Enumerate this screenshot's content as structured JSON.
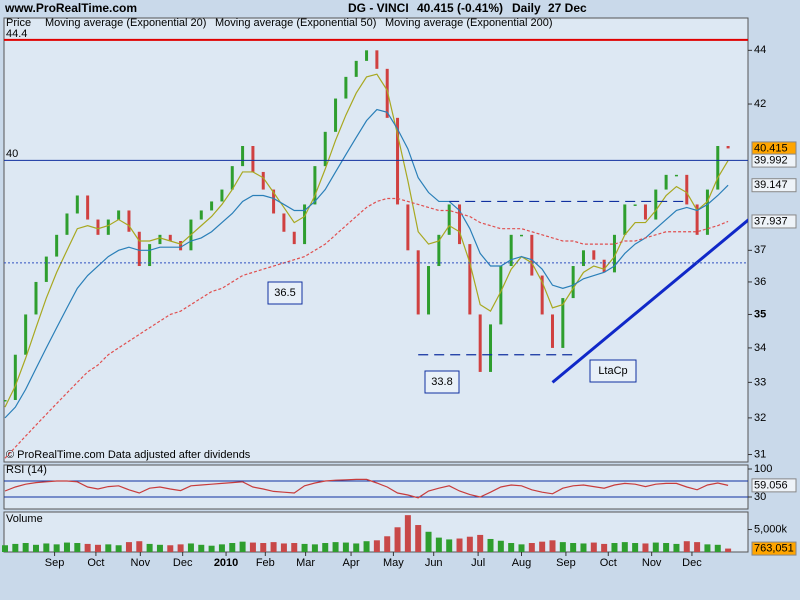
{
  "chart_data": [
    {
      "type": "line",
      "site": "www.ProRealTime.com",
      "title": "DG - VINCI",
      "quote": "40.415 (-0.41%)",
      "period": "Daily",
      "date": "27 Dec",
      "footer": "© ProRealTime.com  Data adjusted after dividends",
      "log_scale": true,
      "ylim": [
        30.8,
        45.25
      ],
      "yticks": [
        31,
        32,
        33,
        34,
        35,
        36,
        37,
        42,
        44
      ],
      "xticks": [
        {
          "value": 4.8,
          "label": "Sep"
        },
        {
          "value": 8.8,
          "label": "Oct"
        },
        {
          "value": 13.1,
          "label": "Nov"
        },
        {
          "value": 17.2,
          "label": "Dec"
        },
        {
          "value": 21.4,
          "label": "2010"
        },
        {
          "value": 25.2,
          "label": "Feb"
        },
        {
          "value": 29.1,
          "label": "Mar"
        },
        {
          "value": 33.5,
          "label": "Apr"
        },
        {
          "value": 37.6,
          "label": "May"
        },
        {
          "value": 41.5,
          "label": "Jun"
        },
        {
          "value": 45.8,
          "label": "Jul"
        },
        {
          "value": 50,
          "label": "Aug"
        },
        {
          "value": 54.3,
          "label": "Sep"
        },
        {
          "value": 58.4,
          "label": "Oct"
        },
        {
          "value": 62.6,
          "label": "Nov"
        },
        {
          "value": 66.5,
          "label": "Dec"
        }
      ],
      "series": [
        {
          "name": "Price",
          "color": "#2e9e2e",
          "down_color": "#d04040",
          "style": "bars",
          "values": [
            32.5,
            33.8,
            35,
            36,
            36.8,
            37.5,
            38.2,
            38.8,
            38,
            37.5,
            38,
            38.3,
            37.6,
            36.5,
            37.2,
            37.5,
            37.3,
            37,
            38,
            38.3,
            38.6,
            39,
            39.8,
            40.5,
            39.6,
            39,
            38.2,
            37.6,
            37.2,
            38.5,
            39.8,
            41,
            42.2,
            43,
            43.6,
            44,
            43.3,
            41.5,
            38.5,
            37,
            35,
            36.5,
            37.5,
            38.5,
            37.2,
            35,
            33.3,
            34.7,
            36.5,
            37.5,
            37.5,
            36.2,
            35,
            34,
            35.5,
            36.5,
            37,
            36.7,
            36.3,
            37.5,
            38.5,
            38.5,
            38,
            39,
            39.5,
            39.5,
            38.5,
            37.5,
            39,
            40.5,
            40.415
          ]
        },
        {
          "name": "Moving average (Exponential 20)",
          "color": "#a8a820",
          "values": [
            32.3,
            32.9,
            33.7,
            34.6,
            35.5,
            36.3,
            37,
            37.7,
            37.8,
            37.7,
            37.8,
            38,
            37.8,
            37.3,
            37.3,
            37.4,
            37.3,
            37.2,
            37.5,
            37.8,
            38.1,
            38.5,
            39,
            39.6,
            39.6,
            39.4,
            38.9,
            38.4,
            37.9,
            38.1,
            38.8,
            39.7,
            40.7,
            41.6,
            42.4,
            43,
            43.1,
            42.5,
            40.9,
            39.3,
            37.6,
            37.2,
            37.3,
            37.8,
            37.6,
            36.6,
            35.3,
            35.1,
            35.7,
            36.4,
            36.8,
            36.6,
            36,
            35.2,
            35.3,
            35.8,
            36.3,
            36.5,
            36.4,
            36.8,
            37.5,
            37.9,
            37.9,
            38.3,
            38.8,
            39.1,
            38.9,
            38.3,
            38.6,
            39.4,
            39.992
          ]
        },
        {
          "name": "Moving average (Exponential 50)",
          "color": "#2a7fb8",
          "values": [
            32,
            32.3,
            32.8,
            33.4,
            34,
            34.6,
            35.2,
            35.8,
            36.2,
            36.5,
            36.8,
            37,
            37.1,
            37,
            37,
            37.1,
            37.1,
            37.1,
            37.3,
            37.4,
            37.6,
            37.9,
            38.2,
            38.6,
            38.8,
            38.8,
            38.7,
            38.5,
            38.3,
            38.3,
            38.6,
            39,
            39.6,
            40.2,
            40.8,
            41.4,
            41.8,
            41.7,
            41.1,
            40.4,
            39.4,
            38.9,
            38.6,
            38.6,
            38.3,
            37.7,
            36.9,
            36.5,
            36.5,
            36.7,
            36.8,
            36.7,
            36.4,
            35.9,
            35.8,
            35.9,
            36.1,
            36.2,
            36.3,
            36.5,
            36.9,
            37.2,
            37.4,
            37.7,
            38,
            38.3,
            38.4,
            38.3,
            38.5,
            38.8,
            39.147
          ]
        },
        {
          "name": "Moving average (Exponential 200)",
          "color": "#e05050",
          "dashed": true,
          "values": [
            30.9,
            31.2,
            31.5,
            31.8,
            32.1,
            32.4,
            32.7,
            33,
            33.3,
            33.5,
            33.8,
            34,
            34.2,
            34.4,
            34.6,
            34.8,
            35,
            35.1,
            35.3,
            35.5,
            35.7,
            35.8,
            36,
            36.2,
            36.3,
            36.4,
            36.5,
            36.6,
            36.7,
            36.8,
            37,
            37.2,
            37.5,
            37.8,
            38.1,
            38.4,
            38.6,
            38.7,
            38.7,
            38.6,
            38.5,
            38.4,
            38.3,
            38.3,
            38.2,
            38.1,
            37.9,
            37.8,
            37.7,
            37.7,
            37.7,
            37.6,
            37.5,
            37.4,
            37.3,
            37.3,
            37.2,
            37.2,
            37.2,
            37.2,
            37.3,
            37.3,
            37.4,
            37.5,
            37.6,
            37.6,
            37.6,
            37.6,
            37.7,
            37.8,
            37.937
          ]
        }
      ],
      "levels": [
        {
          "value": 44.4,
          "label": "44.4",
          "color": "#e00000"
        },
        {
          "value": 40,
          "label": "40",
          "color": "#1030a0"
        },
        {
          "value": 36.6,
          "color": "#3050c0",
          "dashed": true
        }
      ],
      "segments": [
        {
          "x": [
            43,
            66
          ],
          "values": [
            38.6,
            38.6
          ],
          "color": "#1030a0",
          "dashed": true
        },
        {
          "x": [
            40,
            55
          ],
          "values": [
            33.8,
            33.8
          ],
          "color": "#1030a0",
          "dashed": true
        },
        {
          "x": [
            53,
            72
          ],
          "values": [
            33,
            38
          ],
          "color": "#1028c8"
        }
      ],
      "annotations": [
        {
          "label": "36.5"
        },
        {
          "label": "33.8"
        },
        {
          "label": "LtaCp"
        }
      ]
    },
    {
      "type": "line",
      "title": "RSI (14)",
      "ylim": [
        0,
        110
      ],
      "yticks": [
        30,
        100
      ],
      "levels": [
        30,
        70
      ],
      "series": [
        {
          "color": "#c83c3c",
          "values": [
            45,
            55,
            62,
            66,
            68,
            70,
            70,
            68,
            55,
            50,
            56,
            58,
            48,
            40,
            52,
            55,
            50,
            46,
            58,
            60,
            62,
            64,
            66,
            68,
            55,
            50,
            44,
            42,
            40,
            58,
            65,
            70,
            72,
            73,
            74,
            74,
            65,
            55,
            40,
            35,
            28,
            45,
            52,
            58,
            45,
            36,
            30,
            42,
            55,
            60,
            58,
            48,
            42,
            38,
            52,
            58,
            60,
            56,
            52,
            60,
            64,
            62,
            56,
            62,
            64,
            64,
            55,
            48,
            60,
            65,
            59.056
          ]
        }
      ]
    },
    {
      "type": "bar",
      "title": "Volume",
      "ylim": [
        0,
        8900000
      ],
      "yticks": [
        {
          "value": 5000000,
          "label": "5,000k"
        }
      ],
      "color": "#c84848",
      "current_label": "763,051",
      "values": [
        1500000,
        1800000,
        2000000,
        1600000,
        1900000,
        1700000,
        2100000,
        2000000,
        1800000,
        1600000,
        1700000,
        1500000,
        2200000,
        2400000,
        1800000,
        1600000,
        1500000,
        1700000,
        1900000,
        1600000,
        1400000,
        1700000,
        2000000,
        2300000,
        2100000,
        2000000,
        2200000,
        1900000,
        2000000,
        1800000,
        1700000,
        2000000,
        2200000,
        2100000,
        1900000,
        2400000,
        2600000,
        3500000,
        5500000,
        8200000,
        6000000,
        4500000,
        3200000,
        2800000,
        3000000,
        3400000,
        3800000,
        2900000,
        2500000,
        2000000,
        1700000,
        2000000,
        2300000,
        2600000,
        2200000,
        2000000,
        1900000,
        2100000,
        1800000,
        2000000,
        2200000,
        2000000,
        1900000,
        2100000,
        2000000,
        1800000,
        2400000,
        2200000,
        1700000,
        1600000,
        763051
      ]
    }
  ]
}
